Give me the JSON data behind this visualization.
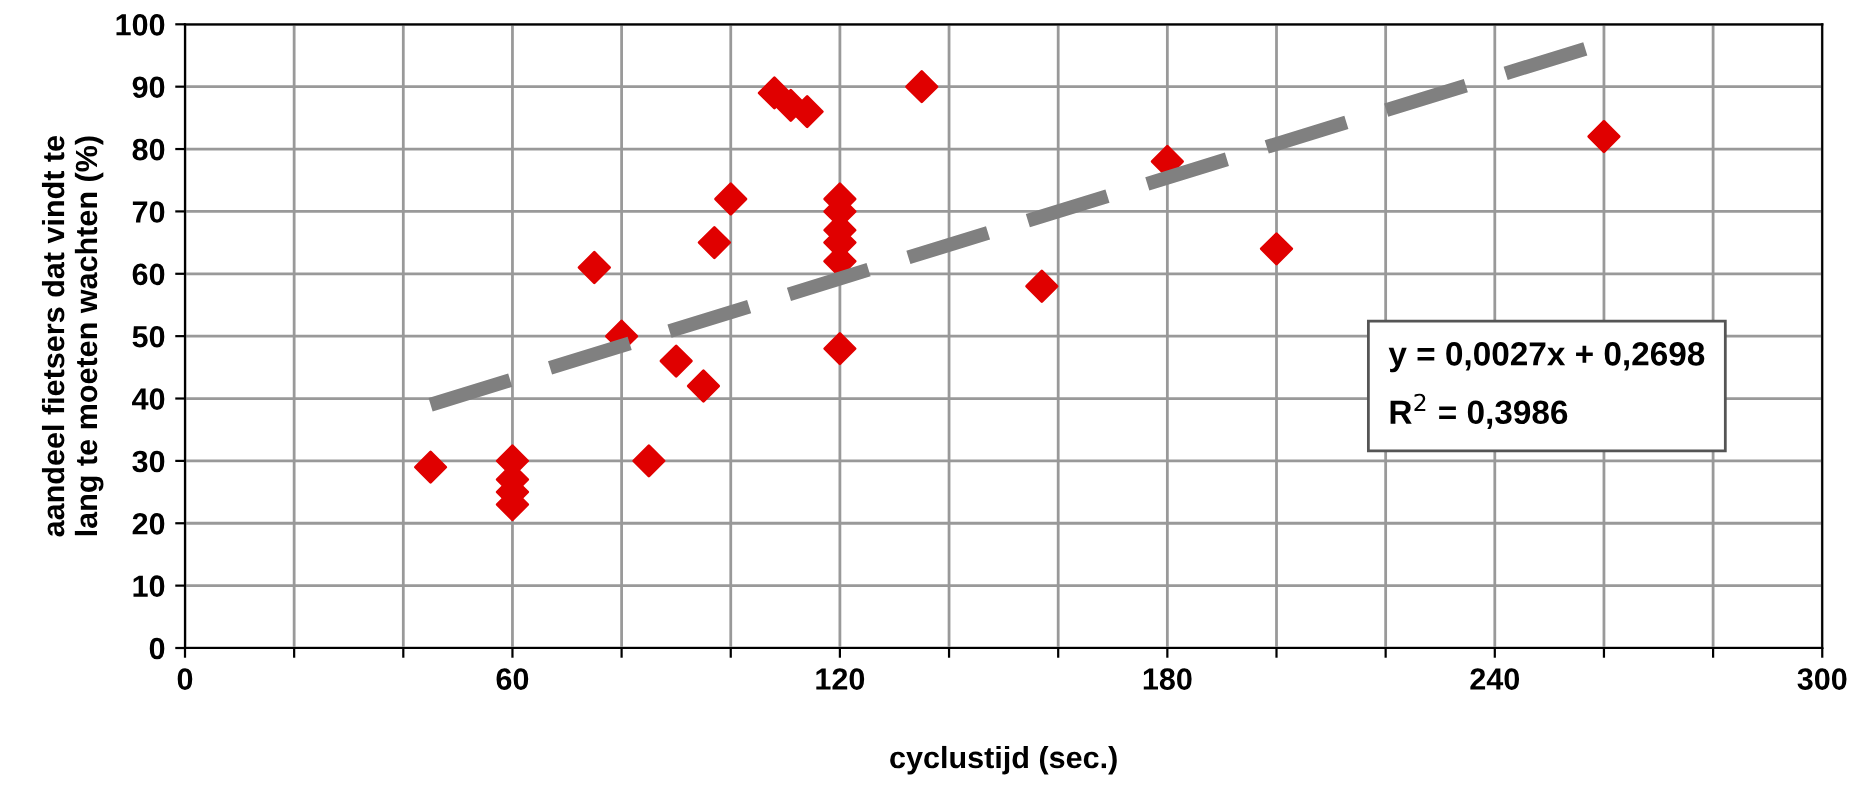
{
  "chart_data": {
    "type": "scatter",
    "xlabel": "cyclustijd (sec.)",
    "ylabel": "aandeel fietsers dat vindt te\nlang te moeten wachten (%)",
    "series": [
      {
        "color": "#e00000",
        "marker": "diamond",
        "x": [
          45,
          60,
          60,
          60,
          60,
          75,
          80,
          85,
          90,
          95,
          97,
          100,
          108,
          111,
          114,
          120,
          120,
          120,
          120,
          120,
          120,
          135,
          157,
          180,
          200,
          260
        ],
        "values": [
          29,
          30,
          27,
          25,
          23,
          61,
          50,
          30,
          46,
          42,
          65,
          72,
          89,
          87,
          86,
          72,
          70,
          67,
          65,
          62,
          48,
          90,
          58,
          78,
          64,
          82
        ]
      },
      {
        "type": "line",
        "color": "#808080",
        "line_style": "dashed",
        "marker": "none",
        "x": [
          45,
          260
        ],
        "values": [
          39,
          97
        ]
      }
    ],
    "xlim": [
      0,
      300
    ],
    "ylim": [
      0,
      100
    ],
    "xticks": [
      0,
      {
        "value": 20,
        "label": null
      },
      {
        "value": 40,
        "label": null
      },
      60,
      {
        "value": 80,
        "label": null
      },
      {
        "value": 100,
        "label": null
      },
      120,
      {
        "value": 140,
        "label": null
      },
      {
        "value": 160,
        "label": null
      },
      180,
      {
        "value": 200,
        "label": null
      },
      {
        "value": 220,
        "label": null
      },
      240,
      {
        "value": 260,
        "label": null
      },
      {
        "value": 280,
        "label": null
      },
      300
    ],
    "yticks": [
      0,
      10,
      20,
      30,
      40,
      50,
      60,
      70,
      80,
      90,
      100
    ],
    "grid": true,
    "legend": false,
    "annotations": [
      "y = 0,0027x + 0,2698\nR$^{2}$ = 0,3986"
    ]
  }
}
